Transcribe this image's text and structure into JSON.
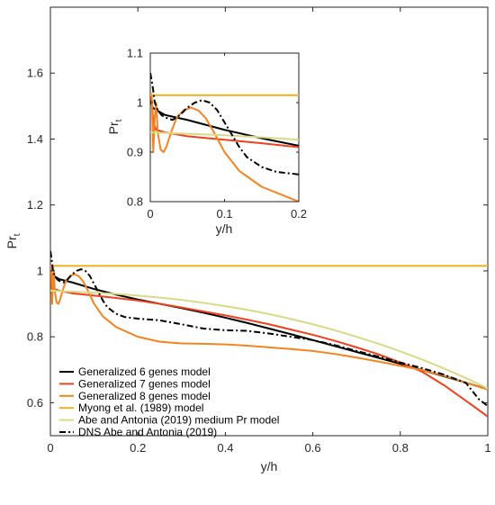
{
  "chart_data": [
    {
      "type": "line",
      "name": "main",
      "xlabel": "y/h",
      "ylabel_main": "Pr",
      "ylabel_sub": "t",
      "xlim": [
        0,
        1
      ],
      "ylim": [
        0.5,
        1.8
      ],
      "xticks": [
        0,
        0.2,
        0.4,
        0.6,
        0.8,
        1
      ],
      "xtick_labels": [
        "0",
        "0.2",
        "0.4",
        "0.6",
        "0.8",
        "1"
      ],
      "yticks": [
        0.6,
        0.8,
        1.0,
        1.2,
        1.4,
        1.6
      ],
      "ytick_labels": [
        "0.6",
        "0.8",
        "1",
        "1.2",
        "1.4",
        "1.6"
      ],
      "grid": false,
      "legend_position": "bottom-left",
      "series": [
        {
          "name": "Generalized 6 genes model",
          "color": "#000000",
          "style": "solid",
          "width": 2,
          "x": [
            0,
            0.003,
            0.008,
            0.02,
            0.05,
            0.1,
            0.15,
            0.2,
            0.25,
            0.3,
            0.35,
            0.4,
            0.45,
            0.5,
            0.55,
            0.6,
            0.65,
            0.7,
            0.75,
            0.8,
            0.85,
            0.9,
            0.95,
            1.0
          ],
          "y": [
            1.01,
            0.99,
            0.985,
            0.975,
            0.965,
            0.945,
            0.928,
            0.913,
            0.9,
            0.887,
            0.873,
            0.858,
            0.842,
            0.825,
            0.808,
            0.79,
            0.772,
            0.754,
            0.736,
            0.718,
            0.699,
            0.68,
            0.661,
            0.641
          ]
        },
        {
          "name": "Generalized 7 genes model",
          "color": "#F0401E",
          "style": "solid",
          "width": 2,
          "x": [
            0,
            0.002,
            0.004,
            0.008,
            0.02,
            0.05,
            0.1,
            0.15,
            0.2,
            0.25,
            0.3,
            0.35,
            0.4,
            0.45,
            0.5,
            0.55,
            0.6,
            0.65,
            0.7,
            0.75,
            0.8,
            0.85,
            0.9,
            0.95,
            1.0
          ],
          "y": [
            1.01,
            1.005,
            0.96,
            0.945,
            0.94,
            0.932,
            0.925,
            0.918,
            0.91,
            0.9,
            0.889,
            0.877,
            0.865,
            0.852,
            0.838,
            0.822,
            0.806,
            0.788,
            0.768,
            0.747,
            0.722,
            0.694,
            0.653,
            0.606,
            0.558
          ]
        },
        {
          "name": "Generalized 8 genes model",
          "color": "#F5841F",
          "style": "solid",
          "width": 2,
          "x": [
            0,
            0.002,
            0.004,
            0.006,
            0.008,
            0.01,
            0.014,
            0.018,
            0.022,
            0.028,
            0.035,
            0.045,
            0.055,
            0.065,
            0.075,
            0.085,
            0.1,
            0.12,
            0.15,
            0.2,
            0.25,
            0.3,
            0.35,
            0.4,
            0.45,
            0.5,
            0.55,
            0.6,
            0.65,
            0.7,
            0.75,
            0.8,
            0.85,
            0.9,
            0.95,
            1.0
          ],
          "y": [
            1.02,
            1.015,
            0.9,
            0.97,
            1.0,
            0.94,
            0.905,
            0.9,
            0.912,
            0.94,
            0.968,
            0.985,
            0.99,
            0.984,
            0.968,
            0.942,
            0.9,
            0.862,
            0.83,
            0.8,
            0.785,
            0.78,
            0.779,
            0.777,
            0.773,
            0.768,
            0.763,
            0.757,
            0.748,
            0.737,
            0.725,
            0.712,
            0.699,
            0.682,
            0.661,
            0.64
          ]
        },
        {
          "name": "Myong et al. (1989) model",
          "color": "#EDB120",
          "style": "solid",
          "width": 2,
          "x": [
            0,
            1
          ],
          "y": [
            1.015,
            1.015
          ]
        },
        {
          "name": "Abe and Antonia (2019) medium Pr model",
          "color": "#D7DB84",
          "style": "solid",
          "width": 2,
          "x": [
            0,
            0.05,
            0.1,
            0.15,
            0.2,
            0.25,
            0.3,
            0.35,
            0.4,
            0.45,
            0.5,
            0.55,
            0.6,
            0.65,
            0.7,
            0.75,
            0.8,
            0.85,
            0.9,
            0.95,
            1.0
          ],
          "y": [
            0.94,
            0.937,
            0.934,
            0.93,
            0.925,
            0.919,
            0.912,
            0.903,
            0.893,
            0.882,
            0.869,
            0.854,
            0.838,
            0.82,
            0.8,
            0.779,
            0.756,
            0.731,
            0.704,
            0.675,
            0.643
          ]
        },
        {
          "name": "DNS Abe and Antonia (2019)",
          "color": "#000000",
          "style": "dashdot",
          "width": 2,
          "x": [
            0,
            0.003,
            0.006,
            0.01,
            0.015,
            0.02,
            0.03,
            0.04,
            0.05,
            0.06,
            0.07,
            0.08,
            0.09,
            0.1,
            0.11,
            0.12,
            0.13,
            0.15,
            0.17,
            0.2,
            0.25,
            0.3,
            0.35,
            0.4,
            0.45,
            0.5,
            0.55,
            0.6,
            0.65,
            0.7,
            0.75,
            0.8,
            0.85,
            0.9,
            0.95,
            0.98,
            1.0
          ],
          "y": [
            1.06,
            1.035,
            1.0,
            0.985,
            0.975,
            0.97,
            0.965,
            0.975,
            0.99,
            1.0,
            1.005,
            1.0,
            0.985,
            0.96,
            0.935,
            0.91,
            0.89,
            0.87,
            0.86,
            0.855,
            0.85,
            0.838,
            0.825,
            0.82,
            0.818,
            0.81,
            0.8,
            0.79,
            0.775,
            0.757,
            0.74,
            0.722,
            0.705,
            0.685,
            0.66,
            0.61,
            0.59
          ]
        }
      ]
    },
    {
      "type": "line",
      "name": "inset",
      "xlabel": "y/h",
      "ylabel_main": "Pr",
      "ylabel_sub": "t",
      "xlim": [
        0,
        0.2
      ],
      "ylim": [
        0.8,
        1.1
      ],
      "xticks": [
        0,
        0.1,
        0.2
      ],
      "xtick_labels": [
        "0",
        "0.1",
        "0.2"
      ],
      "yticks": [
        0.8,
        0.9,
        1.0,
        1.1
      ],
      "ytick_labels": [
        "0.8",
        "0.9",
        "1",
        "1.1"
      ],
      "grid": false
    }
  ]
}
